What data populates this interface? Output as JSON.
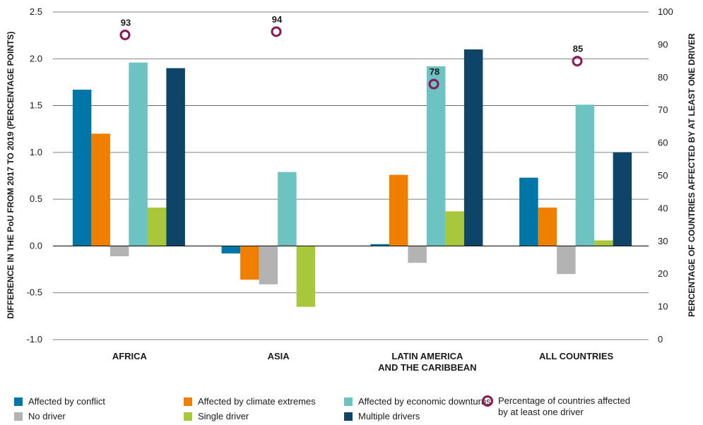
{
  "chart_data": {
    "type": "bar",
    "categories": [
      "AFRICA",
      "ASIA",
      "LATIN AMERICA AND THE CARIBBEAN",
      "ALL COUNTRIES"
    ],
    "category_lines": [
      [
        "AFRICA"
      ],
      [
        "ASIA"
      ],
      [
        "LATIN AMERICA",
        "AND THE CARIBBEAN"
      ],
      [
        "ALL COUNTRIES"
      ]
    ],
    "series": [
      {
        "name": "Affected by conflict",
        "color": "#0075a8",
        "values": [
          1.67,
          -0.08,
          0.02,
          0.73
        ]
      },
      {
        "name": "Affected by climate extremes",
        "color": "#f07f00",
        "values": [
          1.2,
          -0.36,
          0.76,
          0.41
        ]
      },
      {
        "name": "No driver",
        "color": "#b3b3b3",
        "values": [
          -0.11,
          -0.41,
          -0.18,
          -0.3
        ]
      },
      {
        "name": "Affected by economic downturns",
        "color": "#6cc3c1",
        "values": [
          1.96,
          0.79,
          1.92,
          1.51
        ]
      },
      {
        "name": "Single driver",
        "color": "#a8c73a",
        "values": [
          0.41,
          -0.65,
          0.37,
          0.06
        ]
      },
      {
        "name": "Multiple drivers",
        "color": "#0e4468",
        "values": [
          1.9,
          null,
          2.1,
          1.0
        ]
      }
    ],
    "secondary_series": {
      "name": "Percentage of countries affected by at least one driver",
      "color": "#8a1a55",
      "values": [
        93,
        94,
        78,
        85
      ],
      "labels": [
        "93",
        "94",
        "78",
        "85"
      ]
    },
    "ylabel": "DIFFERENCE IN THE PoU FROM 2017 TO 2019 (PERCENTAGE POINTS)",
    "y2label": "PERCENTAGE OF COUNTRIES AFFECTED BY AT LEAST ONE DRIVER",
    "ylim": [
      -1.0,
      2.5
    ],
    "y2lim": [
      0,
      100
    ],
    "yticks": [
      "2.5",
      "2.0",
      "1.5",
      "1.0",
      "0.5",
      "0.0",
      "-0.5",
      "-1.0"
    ],
    "y2ticks": [
      "100",
      "90",
      "80",
      "70",
      "60",
      "50",
      "40",
      "30",
      "20",
      "10",
      "0"
    ],
    "grid": true,
    "legend_position": "bottom"
  },
  "legend": {
    "row1": [
      "Affected by conflict",
      "Affected by climate extremes",
      "Affected by economic downturns"
    ],
    "row2": [
      "No driver",
      "Single driver",
      "Multiple drivers"
    ],
    "ring_label_line1": "Percentage of countries affected",
    "ring_label_line2": "by at least one driver",
    "colors": {
      "conflict": "#0075a8",
      "climate": "#f07f00",
      "economic": "#6cc3c1",
      "no_driver": "#b3b3b3",
      "single": "#a8c73a",
      "multiple": "#0e4468",
      "ring": "#8a1a55"
    }
  }
}
